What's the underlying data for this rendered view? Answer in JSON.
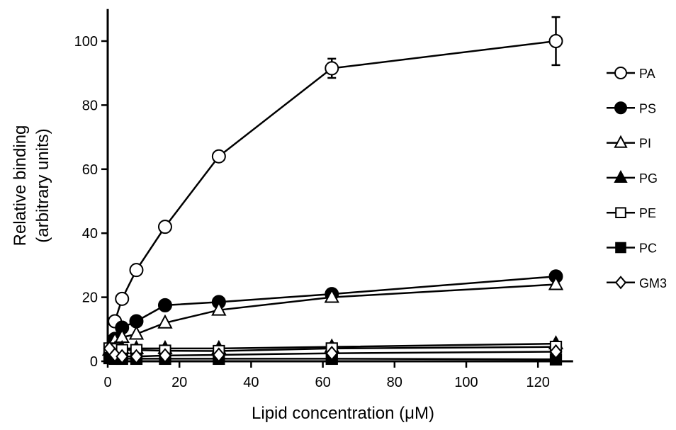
{
  "chart_data": {
    "type": "line",
    "xlabel": "Lipid concentration (μM)",
    "ylabel": [
      "Relative binding",
      "(arbitrary units)"
    ],
    "xlim": [
      0,
      130
    ],
    "ylim": [
      0,
      110
    ],
    "xticks": [
      0,
      20,
      40,
      60,
      80,
      100,
      120
    ],
    "yticks": [
      0,
      20,
      40,
      60,
      80,
      100
    ],
    "grid": false,
    "legend_position": "right",
    "series": [
      {
        "name": "PA",
        "marker": "circle",
        "fill": "open",
        "x": [
          2,
          4,
          8,
          16,
          31,
          62.5,
          125
        ],
        "y": [
          12.5,
          19.5,
          28.5,
          42,
          64,
          91.5,
          100
        ],
        "err": [
          0,
          0,
          0,
          0,
          0,
          3,
          7.5
        ]
      },
      {
        "name": "PS",
        "marker": "circle",
        "fill": "filled",
        "x": [
          2,
          4,
          8,
          16,
          31,
          62.5,
          125
        ],
        "y": [
          7,
          10.5,
          12.5,
          17.5,
          18.5,
          21,
          26.5
        ],
        "err": [
          0,
          0,
          0,
          0,
          0,
          0,
          0
        ]
      },
      {
        "name": "PI",
        "marker": "triangle",
        "fill": "open",
        "x": [
          2,
          4,
          8,
          16,
          31,
          62.5,
          125
        ],
        "y": [
          6.5,
          7.5,
          8.5,
          12,
          16,
          20,
          24
        ],
        "err": [
          0,
          0,
          0,
          0,
          0,
          0,
          0
        ]
      },
      {
        "name": "PG",
        "marker": "triangle",
        "fill": "filled",
        "x": [
          0.5,
          2,
          4,
          8,
          16,
          31,
          62.5,
          125
        ],
        "y": [
          3.5,
          3.8,
          4,
          4,
          4,
          4,
          4.5,
          5.5
        ],
        "err": [
          0,
          0,
          0,
          0,
          0,
          0,
          0,
          0
        ]
      },
      {
        "name": "PE",
        "marker": "square",
        "fill": "open",
        "x": [
          0.5,
          2,
          4,
          8,
          16,
          31,
          62.5,
          125
        ],
        "y": [
          4,
          3.8,
          3.5,
          3.5,
          3.3,
          3.2,
          4,
          4.5
        ],
        "err": [
          0,
          0,
          0,
          0,
          0,
          0,
          0,
          0
        ]
      },
      {
        "name": "PC",
        "marker": "square",
        "fill": "filled",
        "x": [
          0.5,
          2,
          4,
          8,
          16,
          31,
          62.5,
          125
        ],
        "y": [
          1,
          0.8,
          0.8,
          0.8,
          0.8,
          0.8,
          0.8,
          0.6
        ],
        "err": [
          0,
          0,
          0,
          0,
          0,
          0,
          0,
          0
        ]
      },
      {
        "name": "GM3",
        "marker": "diamond",
        "fill": "open",
        "x": [
          0.5,
          2,
          4,
          8,
          16,
          31,
          62.5,
          125
        ],
        "y": [
          4,
          2,
          1.5,
          1.5,
          1.8,
          2,
          2.5,
          3
        ],
        "err": [
          0,
          0,
          0,
          0,
          0,
          0,
          0,
          0
        ]
      }
    ]
  }
}
